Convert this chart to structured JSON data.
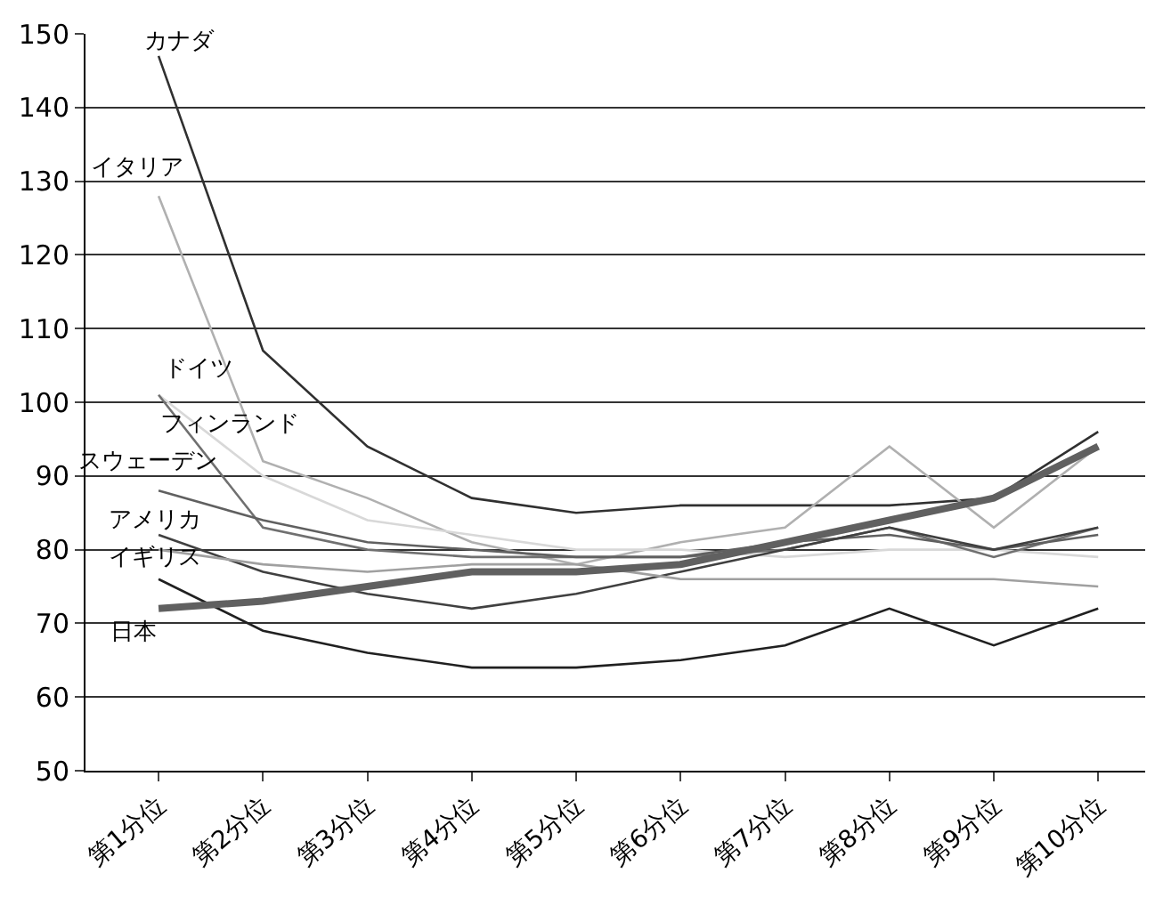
{
  "chart_data": {
    "type": "line",
    "categories": [
      "第1分位",
      "第2分位",
      "第3分位",
      "第4分位",
      "第5分位",
      "第6分位",
      "第7分位",
      "第8分位",
      "第9分位",
      "第10分位"
    ],
    "series": [
      {
        "name": "カナダ",
        "color": "#303030",
        "values": [
          147,
          107,
          94,
          87,
          85,
          86,
          86,
          86,
          87,
          96
        ]
      },
      {
        "name": "イタリア",
        "color": "#b0b0b0",
        "values": [
          128,
          92,
          87,
          81,
          78,
          81,
          83,
          94,
          83,
          94
        ]
      },
      {
        "name": "ドイツ",
        "color": "#d8d8d8",
        "values": [
          101,
          90,
          84,
          82,
          80,
          80,
          79,
          80,
          80,
          79
        ]
      },
      {
        "name": "フィンランド",
        "color": "#707070",
        "values": [
          101,
          83,
          80,
          79,
          79,
          79,
          80,
          83,
          79,
          83
        ]
      },
      {
        "name": "スウェーデン",
        "color": "#606060",
        "values": [
          88,
          84,
          81,
          80,
          79,
          79,
          81,
          82,
          80,
          82
        ]
      },
      {
        "name": "アメリカ",
        "color": "#404040",
        "values": [
          82,
          77,
          74,
          72,
          74,
          77,
          80,
          83,
          80,
          83
        ]
      },
      {
        "name": "イギリス",
        "color": "#a0a0a0",
        "values": [
          80,
          78,
          77,
          78,
          78,
          76,
          76,
          76,
          76,
          75
        ]
      },
      {
        "name": "日本",
        "color": "#202020",
        "values": [
          76,
          69,
          66,
          64,
          64,
          65,
          67,
          72,
          67,
          72
        ]
      },
      {
        "color": "#606060",
        "values": [
          72,
          73,
          75,
          77,
          77,
          78,
          81,
          84,
          87,
          94
        ]
      }
    ],
    "ylim": [
      50,
      150
    ],
    "yticks": [
      50,
      60,
      70,
      80,
      90,
      100,
      110,
      120,
      130,
      140,
      150
    ],
    "grid": "y",
    "legend": false
  }
}
